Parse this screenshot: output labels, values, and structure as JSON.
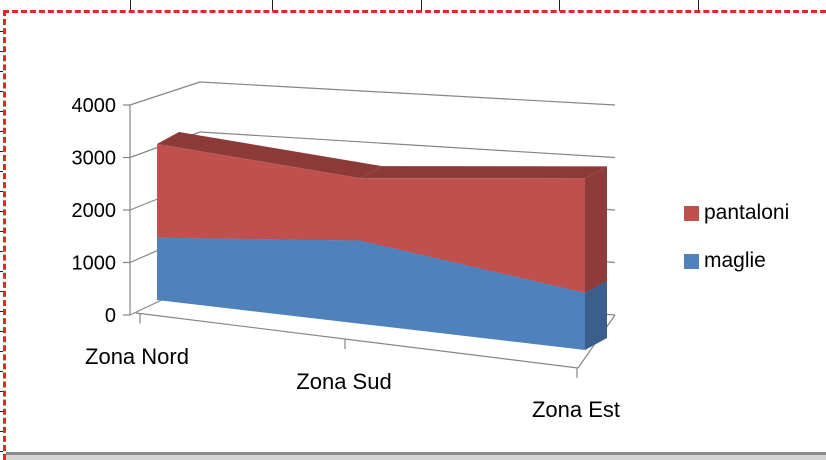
{
  "chart_data": {
    "type": "area",
    "stacked": true,
    "three_d": true,
    "categories": [
      "Zona Nord",
      "Zona Sud",
      "Zona Est"
    ],
    "series": [
      {
        "name": "maglie",
        "values": [
          1200,
          1600,
          1100
        ],
        "color": "#4F81BD"
      },
      {
        "name": "pantaloni",
        "values": [
          1800,
          1200,
          2200
        ],
        "color": "#C0504D"
      }
    ],
    "ylim": [
      0,
      4000
    ],
    "yticks": [
      0,
      1000,
      2000,
      3000,
      4000
    ],
    "grid": true,
    "legend_position": "right"
  }
}
